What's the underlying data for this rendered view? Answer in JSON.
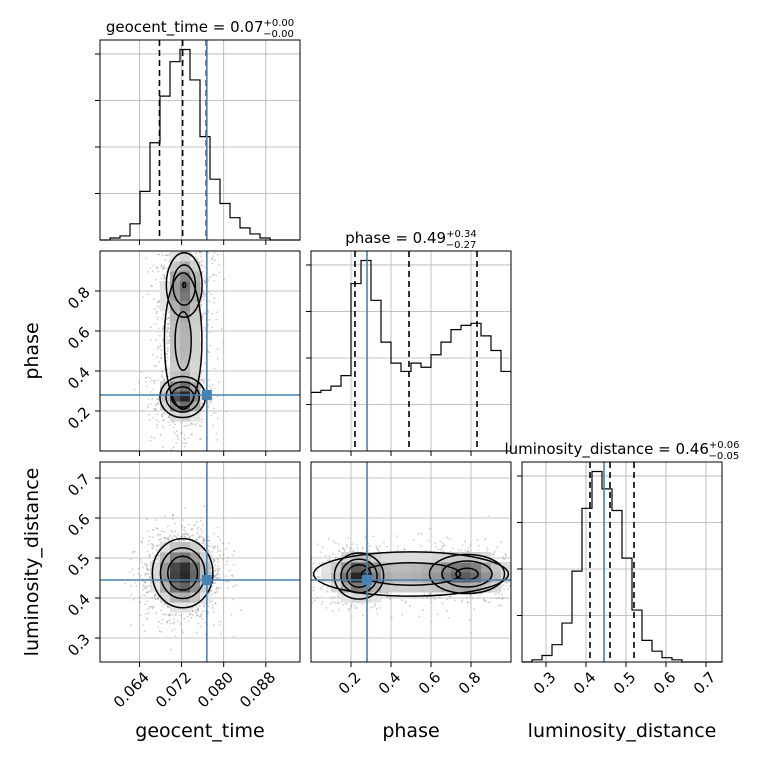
{
  "chart_data": {
    "type": "corner",
    "parameters": [
      "geocent_time",
      "phase",
      "luminosity_distance"
    ],
    "truths": {
      "geocent_time": 0.0768,
      "phase": 0.28,
      "luminosity_distance": 0.445
    },
    "colors": {
      "truth": "#4682b4",
      "hist": "#000000",
      "grid": "#b0b0b0"
    },
    "titles": [
      {
        "param": "geocent_time",
        "prefix": "geocent_time = ",
        "median": "0.07",
        "plus": "+0.00",
        "minus": "−0.00"
      },
      {
        "param": "phase",
        "prefix": "phase = ",
        "median": "0.49",
        "plus": "+0.34",
        "minus": "−0.27"
      },
      {
        "param": "luminosity_distance",
        "prefix": "luminosity_distance = ",
        "median": "0.46",
        "plus": "+0.06",
        "minus": "−0.05"
      }
    ],
    "axes": {
      "geocent_time": {
        "range": [
          0.0565,
          0.0945
        ],
        "ticks": [
          0.064,
          0.072,
          0.08,
          0.088
        ],
        "ticklabels": [
          "0.064",
          "0.072",
          "0.080",
          "0.088"
        ]
      },
      "phase": {
        "range": [
          0.0,
          1.0
        ],
        "ticks": [
          0.2,
          0.4,
          0.6,
          0.8
        ],
        "ticklabels": [
          "0.2",
          "0.4",
          "0.6",
          "0.8"
        ]
      },
      "luminosity_distance": {
        "range": [
          0.24,
          0.74
        ],
        "ticks": [
          0.3,
          0.4,
          0.5,
          0.6,
          0.7
        ],
        "ticklabels": [
          "0.3",
          "0.4",
          "0.5",
          "0.6",
          "0.7"
        ]
      }
    },
    "histograms": {
      "geocent_time": {
        "edges": [
          0.0565,
          0.0584,
          0.0603,
          0.0622,
          0.0641,
          0.066,
          0.0679,
          0.0698,
          0.0717,
          0.0736,
          0.0755,
          0.0774,
          0.0793,
          0.0812,
          0.0831,
          0.085,
          0.0869,
          0.0888,
          0.0907,
          0.0926,
          0.0945
        ],
        "counts": [
          0,
          1,
          2,
          8,
          24,
          48,
          71,
          88,
          94,
          79,
          51,
          30,
          18,
          11,
          6,
          3,
          1,
          0,
          0,
          0
        ],
        "quantiles": [
          0.0678,
          0.0722,
          0.0767
        ]
      },
      "phase": {
        "edges": [
          0.0,
          0.05,
          0.1,
          0.15,
          0.2,
          0.25,
          0.3,
          0.35,
          0.4,
          0.45,
          0.5,
          0.55,
          0.6,
          0.65,
          0.7,
          0.75,
          0.8,
          0.85,
          0.9,
          0.95,
          1.0
        ],
        "counts": [
          28,
          29,
          31,
          36,
          80,
          91,
          72,
          52,
          42,
          38,
          42,
          40,
          46,
          52,
          58,
          60,
          61,
          55,
          48,
          38
        ],
        "quantiles": [
          0.22,
          0.49,
          0.83
        ]
      },
      "luminosity_distance": {
        "edges": [
          0.24,
          0.265,
          0.29,
          0.315,
          0.34,
          0.365,
          0.39,
          0.415,
          0.44,
          0.465,
          0.49,
          0.515,
          0.54,
          0.565,
          0.59,
          0.615,
          0.64,
          0.665,
          0.69,
          0.715,
          0.74
        ],
        "counts": [
          0,
          1,
          3,
          8,
          18,
          42,
          71,
          88,
          80,
          70,
          48,
          24,
          10,
          5,
          2,
          1,
          0,
          0,
          0,
          0
        ],
        "quantiles": [
          0.41,
          0.46,
          0.52
        ]
      }
    },
    "panels_2d": [
      {
        "x": "geocent_time",
        "y": "phase",
        "modes": [
          {
            "x": 0.0725,
            "y": 0.83,
            "sx": 0.0019,
            "sy": 0.09,
            "w": 0.6
          },
          {
            "x": 0.0722,
            "y": 0.27,
            "sx": 0.0021,
            "sy": 0.05,
            "w": 1.0
          },
          {
            "x": 0.0723,
            "y": 0.55,
            "sx": 0.0023,
            "sy": 0.22,
            "w": 0.4
          }
        ]
      },
      {
        "x": "geocent_time",
        "y": "luminosity_distance",
        "modes": [
          {
            "x": 0.0722,
            "y": 0.462,
            "sx": 0.0028,
            "sy": 0.042,
            "w": 1.0
          }
        ]
      },
      {
        "x": "phase",
        "y": "luminosity_distance",
        "modes": [
          {
            "x": 0.24,
            "y": 0.455,
            "sx": 0.06,
            "sy": 0.028,
            "w": 1.0
          },
          {
            "x": 0.78,
            "y": 0.46,
            "sx": 0.1,
            "sy": 0.026,
            "w": 0.7
          },
          {
            "x": 0.5,
            "y": 0.46,
            "sx": 0.3,
            "sy": 0.034,
            "w": 0.45
          }
        ]
      }
    ]
  }
}
